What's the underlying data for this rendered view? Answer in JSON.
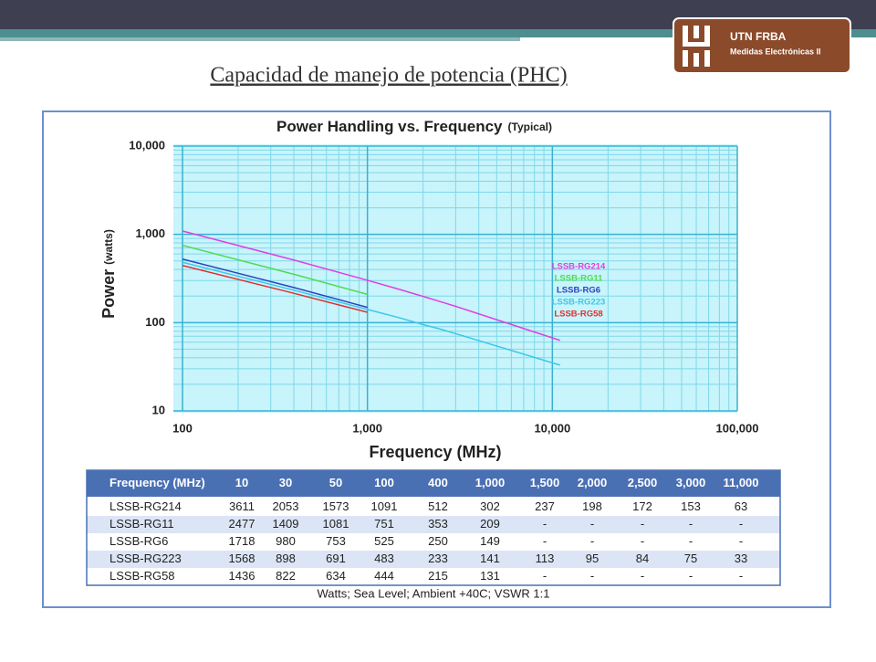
{
  "slide": {
    "title": "Capacidad de manejo de potencia (PHC)",
    "logo_line1": "UTN FRBA",
    "logo_line2": "Medidas Electrónicas II"
  },
  "chart_data": {
    "type": "line",
    "title": "Power Handling vs. Frequency",
    "subtitle": "(Typical)",
    "y_label": "Power",
    "y_unit_label": "(watts)",
    "x_label": "Frequency (MHz)",
    "xscale": "log",
    "yscale": "log",
    "grid": true,
    "x": [
      100,
      400,
      1000,
      1500,
      2000,
      2500,
      3000,
      11000
    ],
    "series": [
      {
        "name": "LSSB-RG214",
        "color": "#e040e0",
        "values": [
          1091,
          512,
          302,
          237,
          198,
          172,
          153,
          63
        ]
      },
      {
        "name": "LSSB-RG11",
        "color": "#4cdc4c",
        "values": [
          751,
          353,
          209,
          null,
          null,
          null,
          null,
          null
        ]
      },
      {
        "name": "LSSB-RG6",
        "color": "#2a44c0",
        "values": [
          525,
          250,
          149,
          null,
          null,
          null,
          null,
          null
        ]
      },
      {
        "name": "LSSB-RG223",
        "color": "#3cc8e8",
        "values": [
          483,
          233,
          141,
          113,
          95,
          84,
          75,
          33
        ]
      },
      {
        "name": "LSSB-RG58",
        "color": "#e03030",
        "values": [
          444,
          215,
          131,
          null,
          null,
          null,
          null,
          null
        ]
      }
    ],
    "xlim": [
      100,
      100000
    ],
    "xticks": [
      100,
      {
        "value": 1000,
        "label": "1,000"
      },
      {
        "value": 10000,
        "label": "10,000"
      },
      {
        "value": 100000,
        "label": "100,000"
      }
    ],
    "ylim": [
      10,
      10000
    ],
    "yticks": [
      10,
      100,
      {
        "value": 1000,
        "label": "1,000"
      },
      {
        "value": 10000,
        "label": "10,000"
      }
    ]
  },
  "table": {
    "header": [
      "Frequency (MHz)",
      "10",
      "30",
      "50",
      "100",
      "400",
      "1,000",
      "1,500",
      "2,000",
      "2,500",
      "3,000",
      "11,000"
    ],
    "rows": [
      [
        "LSSB-RG214",
        3611,
        2053,
        1573,
        1091,
        512,
        302,
        237,
        198,
        172,
        153,
        63
      ],
      [
        "LSSB-RG11",
        2477,
        1409,
        1081,
        751,
        353,
        209,
        "-",
        "-",
        "-",
        "-",
        "-"
      ],
      [
        "LSSB-RG6",
        1718,
        980,
        753,
        525,
        250,
        149,
        "-",
        "-",
        "-",
        "-",
        "-"
      ],
      [
        "LSSB-RG223",
        1568,
        898,
        691,
        483,
        233,
        141,
        113,
        95,
        84,
        75,
        33
      ],
      [
        "LSSB-RG58",
        1436,
        822,
        634,
        444,
        215,
        131,
        "-",
        "-",
        "-",
        "-",
        "-"
      ]
    ],
    "footnote": "Watts; Sea Level; Ambient +40C; VSWR 1:1"
  }
}
